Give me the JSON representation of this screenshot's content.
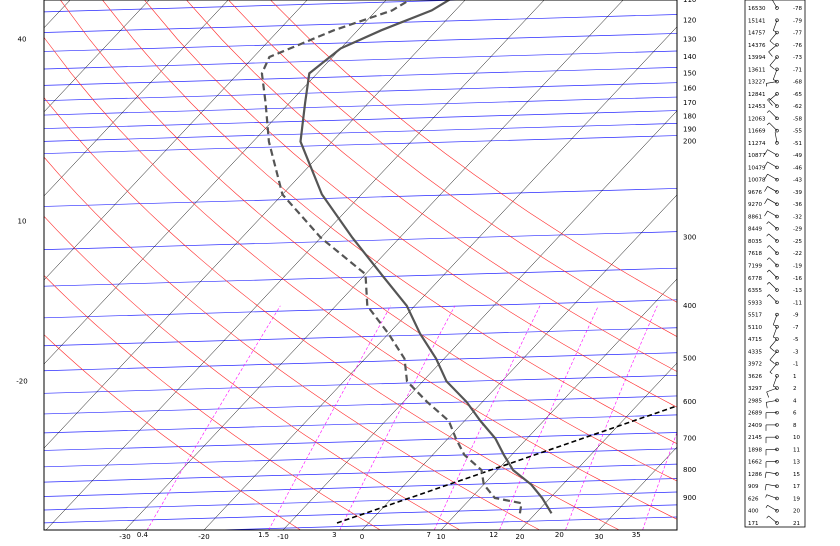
{
  "chart_data": {
    "type": "skew-t",
    "colors": {
      "isobar": "#2a2aff",
      "isotherm": "#000000",
      "dry_adiabat": "#ff2a2a",
      "mixing_ratio": "#ff00ff",
      "temperature": "#555555",
      "dewpoint": "#555555",
      "parcel": "#000000"
    },
    "pressure_labels": [
      {
        "p": 110,
        "label": "110"
      },
      {
        "p": 120,
        "label": "120"
      },
      {
        "p": 130,
        "label": "130"
      },
      {
        "p": 140,
        "label": "140"
      },
      {
        "p": 150,
        "label": "150"
      },
      {
        "p": 160,
        "label": "160"
      },
      {
        "p": 170,
        "label": "170"
      },
      {
        "p": 180,
        "label": "180"
      },
      {
        "p": 190,
        "label": "190"
      },
      {
        "p": 200,
        "label": "200"
      },
      {
        "p": 300,
        "label": "300"
      },
      {
        "p": 400,
        "label": "400"
      },
      {
        "p": 500,
        "label": "500"
      },
      {
        "p": 600,
        "label": "600"
      },
      {
        "p": 700,
        "label": "700"
      },
      {
        "p": 800,
        "label": "800"
      },
      {
        "p": 900,
        "label": "900"
      }
    ],
    "left_axis_labels": [
      {
        "p": 130,
        "label": "40"
      },
      {
        "p": 280,
        "label": "10"
      },
      {
        "p": 550,
        "label": "-20"
      }
    ],
    "temperature_ticks": [
      {
        "t": -30,
        "label": "-30"
      },
      {
        "t": -20,
        "label": "-20"
      },
      {
        "t": -10,
        "label": "-10"
      },
      {
        "t": 0,
        "label": "0"
      },
      {
        "t": 10,
        "label": "10"
      },
      {
        "t": 20,
        "label": "20"
      },
      {
        "t": 30,
        "label": "30"
      }
    ],
    "mixing_ratio_ticks": [
      {
        "w": 0.4,
        "label": "0.4"
      },
      {
        "w": 1.5,
        "label": "1.5"
      },
      {
        "w": 3,
        "label": "3"
      },
      {
        "w": 7,
        "label": "7"
      },
      {
        "w": 12,
        "label": "12"
      },
      {
        "w": 20,
        "label": "20"
      },
      {
        "w": 35,
        "label": "35"
      }
    ],
    "temperature_profile": [
      {
        "p": 960,
        "t": 22
      },
      {
        "p": 900,
        "t": 19
      },
      {
        "p": 850,
        "t": 16
      },
      {
        "p": 800,
        "t": 12
      },
      {
        "p": 750,
        "t": 9
      },
      {
        "p": 700,
        "t": 6
      },
      {
        "p": 650,
        "t": 2
      },
      {
        "p": 600,
        "t": -2
      },
      {
        "p": 550,
        "t": -7
      },
      {
        "p": 500,
        "t": -11
      },
      {
        "p": 450,
        "t": -16
      },
      {
        "p": 400,
        "t": -21
      },
      {
        "p": 350,
        "t": -28
      },
      {
        "p": 300,
        "t": -36
      },
      {
        "p": 250,
        "t": -45
      },
      {
        "p": 200,
        "t": -54
      },
      {
        "p": 170,
        "t": -58
      },
      {
        "p": 150,
        "t": -61
      },
      {
        "p": 135,
        "t": -60
      },
      {
        "p": 125,
        "t": -57
      },
      {
        "p": 115,
        "t": -53
      },
      {
        "p": 100,
        "t": -50
      }
    ],
    "dewpoint_profile": [
      {
        "p": 960,
        "t": 18
      },
      {
        "p": 920,
        "t": 17
      },
      {
        "p": 900,
        "t": 13
      },
      {
        "p": 850,
        "t": 10
      },
      {
        "p": 800,
        "t": 8
      },
      {
        "p": 750,
        "t": 4
      },
      {
        "p": 700,
        "t": 1
      },
      {
        "p": 650,
        "t": -2
      },
      {
        "p": 600,
        "t": -7
      },
      {
        "p": 550,
        "t": -12
      },
      {
        "p": 500,
        "t": -15
      },
      {
        "p": 450,
        "t": -20
      },
      {
        "p": 400,
        "t": -26
      },
      {
        "p": 350,
        "t": -30
      },
      {
        "p": 300,
        "t": -40
      },
      {
        "p": 250,
        "t": -50
      },
      {
        "p": 200,
        "t": -58
      },
      {
        "p": 170,
        "t": -63
      },
      {
        "p": 150,
        "t": -67
      },
      {
        "p": 140,
        "t": -68
      },
      {
        "p": 125,
        "t": -63
      },
      {
        "p": 115,
        "t": -58
      },
      {
        "p": 100,
        "t": -55
      }
    ],
    "parcel_line": [
      {
        "p": 1000,
        "t": -4
      },
      {
        "p": 400,
        "t": 50
      }
    ],
    "dry_adiabat_thetas": [
      -10,
      0,
      10,
      20,
      30,
      40,
      50,
      60,
      70,
      80,
      90,
      100
    ]
  },
  "wind_table": {
    "rows": [
      {
        "h": "16530",
        "t": "-78",
        "dir": 330,
        "spd": 5
      },
      {
        "h": "15141",
        "t": "-79",
        "dir": 200,
        "spd": 5
      },
      {
        "h": "14757",
        "t": "-77",
        "dir": 220,
        "spd": 10
      },
      {
        "h": "14376",
        "t": "-76",
        "dir": 230,
        "spd": 10
      },
      {
        "h": "13994",
        "t": "-73",
        "dir": 220,
        "spd": 10
      },
      {
        "h": "13611",
        "t": "-71",
        "dir": 200,
        "spd": 5
      },
      {
        "h": "13227",
        "t": "-68",
        "dir": 260,
        "spd": 5
      },
      {
        "h": "12841",
        "t": "-65",
        "dir": 230,
        "spd": 10
      },
      {
        "h": "12453",
        "t": "-62",
        "dir": 315,
        "spd": 5
      },
      {
        "h": "12063",
        "t": "-58",
        "dir": 315,
        "spd": 5
      },
      {
        "h": "11669",
        "t": "-55",
        "dir": 315,
        "spd": 5
      },
      {
        "h": "11274",
        "t": "-51",
        "dir": 350,
        "spd": 0
      },
      {
        "h": "10877",
        "t": "-49",
        "dir": 300,
        "spd": 10
      },
      {
        "h": "10479",
        "t": "-46",
        "dir": 300,
        "spd": 10
      },
      {
        "h": "10078",
        "t": "-43",
        "dir": 300,
        "spd": 10
      },
      {
        "h": "9676",
        "t": "-39",
        "dir": 300,
        "spd": 10
      },
      {
        "h": "9270",
        "t": "-36",
        "dir": 300,
        "spd": 10
      },
      {
        "h": "8861",
        "t": "-32",
        "dir": 300,
        "spd": 10
      },
      {
        "h": "8449",
        "t": "-29",
        "dir": 310,
        "spd": 5
      },
      {
        "h": "8035",
        "t": "-25",
        "dir": 310,
        "spd": 5
      },
      {
        "h": "7618",
        "t": "-22",
        "dir": 315,
        "spd": 5
      },
      {
        "h": "7199",
        "t": "-19",
        "dir": 315,
        "spd": 5
      },
      {
        "h": "6778",
        "t": "-16",
        "dir": 315,
        "spd": 5
      },
      {
        "h": "6355",
        "t": "-13",
        "dir": 315,
        "spd": 5
      },
      {
        "h": "5933",
        "t": "-11",
        "dir": 315,
        "spd": 5
      },
      {
        "h": "5517",
        "t": "-9",
        "dir": 200,
        "spd": 5
      },
      {
        "h": "5110",
        "t": "-7",
        "dir": 200,
        "spd": 5
      },
      {
        "h": "4715",
        "t": "-5",
        "dir": 220,
        "spd": 10
      },
      {
        "h": "4335",
        "t": "-3",
        "dir": 220,
        "spd": 10
      },
      {
        "h": "3972",
        "t": "-1",
        "dir": 220,
        "spd": 5
      },
      {
        "h": "3626",
        "t": "1",
        "dir": 200,
        "spd": 5
      },
      {
        "h": "3297",
        "t": "2",
        "dir": 250,
        "spd": 10
      },
      {
        "h": "2985",
        "t": "4",
        "dir": 260,
        "spd": 10
      },
      {
        "h": "2689",
        "t": "6",
        "dir": 270,
        "spd": 10
      },
      {
        "h": "2409",
        "t": "8",
        "dir": 270,
        "spd": 10
      },
      {
        "h": "2145",
        "t": "10",
        "dir": 270,
        "spd": 10
      },
      {
        "h": "1898",
        "t": "11",
        "dir": 270,
        "spd": 10
      },
      {
        "h": "1662",
        "t": "13",
        "dir": 270,
        "spd": 10
      },
      {
        "h": "1286",
        "t": "15",
        "dir": 280,
        "spd": 10
      },
      {
        "h": "909",
        "t": "17",
        "dir": 280,
        "spd": 10
      },
      {
        "h": "626",
        "t": "19",
        "dir": 290,
        "spd": 5
      },
      {
        "h": "400",
        "t": "20",
        "dir": 300,
        "spd": 5
      },
      {
        "h": "171",
        "t": "21",
        "dir": 310,
        "spd": 5
      }
    ]
  }
}
